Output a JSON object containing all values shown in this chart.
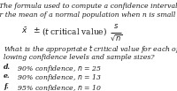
{
  "bg_color": "#ffffff",
  "text_color": "#1a1a1a",
  "title_line1": "The formula used to compute a confidence interval",
  "title_line2": "for the mean of a normal population when ",
  "title_line2b": "n",
  "title_line2c": " is small is",
  "formula_xbar": "$\\bar{x}$",
  "formula_pm": "$\\pm$",
  "formula_tpart": "(",
  "formula_t": "t",
  "formula_trest": " critical value)",
  "formula_sfrac": "$\\dfrac{s}{\\sqrt{n}}$",
  "q_line1": "What is the appropriate ",
  "q_t": "t",
  "q_line1b": " critical value for each of the fol-",
  "q_line2": "lowing confidence levels and sample sizes?",
  "item_d_bold": "d.",
  "item_d_rest": "  90% confidence, ",
  "item_d_n": "n",
  "item_d_val": " = 25",
  "item_e_bold": "e.",
  "item_e_rest": "  90% confidence, ",
  "item_e_n": "n",
  "item_e_val": " = 13",
  "item_f_bold": "f.",
  "item_f_rest": "  95% confidence, ",
  "item_f_n": "n",
  "item_f_val": " = 10",
  "fs": 5.6,
  "fs_formula": 6.5
}
